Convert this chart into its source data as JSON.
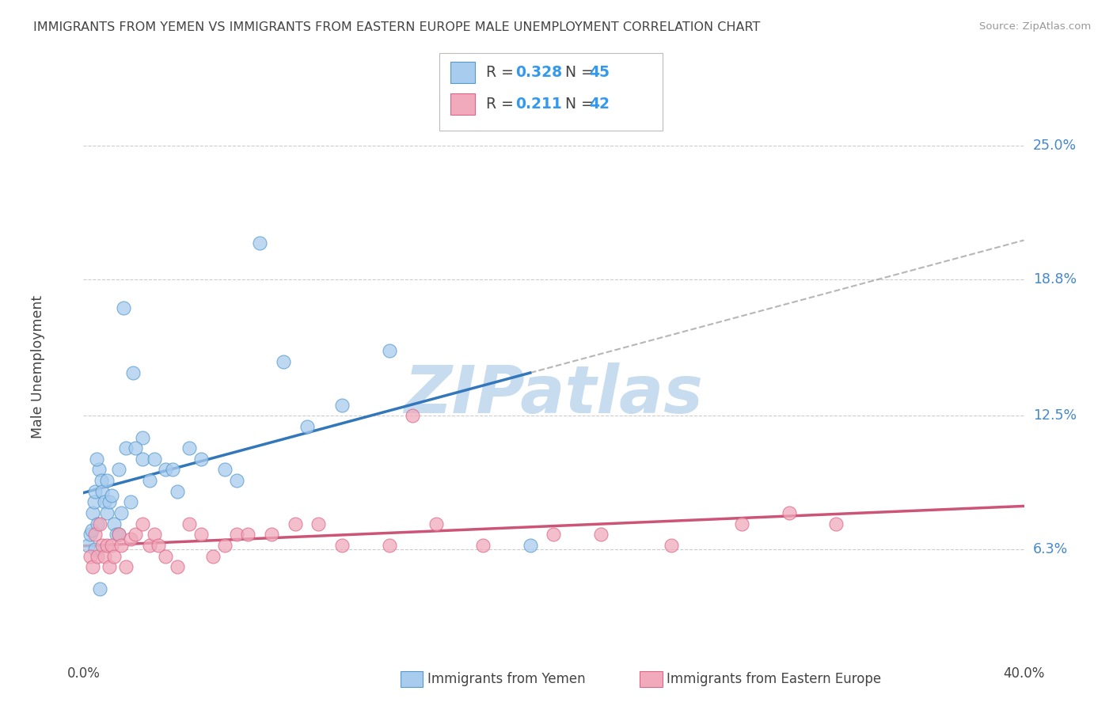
{
  "title": "IMMIGRANTS FROM YEMEN VS IMMIGRANTS FROM EASTERN EUROPE MALE UNEMPLOYMENT CORRELATION CHART",
  "source": "Source: ZipAtlas.com",
  "ylabel": "Male Unemployment",
  "ytick_values": [
    6.3,
    12.5,
    18.8,
    25.0
  ],
  "ytick_labels": [
    "6.3%",
    "12.5%",
    "18.8%",
    "25.0%"
  ],
  "xmin": 0.0,
  "xmax": 40.0,
  "ymin": 2.0,
  "ymax": 27.5,
  "legend_blue_label": "Immigrants from Yemen",
  "legend_pink_label": "Immigrants from Eastern Europe",
  "R_blue": "0.328",
  "N_blue": "45",
  "R_pink": "0.211",
  "N_pink": "42",
  "blue_face": "#A8CCEE",
  "blue_edge": "#5599CC",
  "blue_line": "#3377BB",
  "pink_face": "#F0AABB",
  "pink_edge": "#DD6688",
  "pink_line": "#CC5577",
  "stat_color": "#3399EE",
  "text_color": "#444444",
  "right_label_color": "#4488CC",
  "grid_color": "#CCCCCC",
  "background": "#FFFFFF",
  "watermark": "ZIPatlas",
  "blue_x": [
    0.2,
    0.3,
    0.35,
    0.4,
    0.45,
    0.5,
    0.5,
    0.6,
    0.65,
    0.7,
    0.75,
    0.8,
    0.9,
    1.0,
    1.0,
    1.1,
    1.2,
    1.3,
    1.4,
    1.5,
    1.5,
    1.6,
    1.8,
    2.0,
    2.1,
    2.5,
    2.8,
    3.0,
    3.5,
    3.8,
    4.0,
    4.5,
    5.0,
    6.0,
    6.5,
    7.5,
    8.5,
    9.5,
    11.0,
    13.0,
    2.5,
    1.7,
    0.55,
    2.2,
    19.0
  ],
  "blue_y": [
    6.5,
    7.0,
    7.2,
    8.0,
    8.5,
    9.0,
    6.3,
    7.5,
    10.0,
    4.5,
    9.5,
    9.0,
    8.5,
    9.5,
    8.0,
    8.5,
    8.8,
    7.5,
    7.0,
    7.0,
    10.0,
    8.0,
    11.0,
    8.5,
    14.5,
    10.5,
    9.5,
    10.5,
    10.0,
    10.0,
    9.0,
    11.0,
    10.5,
    10.0,
    9.5,
    20.5,
    15.0,
    12.0,
    13.0,
    15.5,
    11.5,
    17.5,
    10.5,
    11.0,
    6.5
  ],
  "pink_x": [
    0.3,
    0.4,
    0.5,
    0.6,
    0.7,
    0.8,
    0.9,
    1.0,
    1.1,
    1.2,
    1.3,
    1.5,
    1.6,
    1.8,
    2.0,
    2.2,
    2.5,
    2.8,
    3.0,
    3.2,
    3.5,
    4.0,
    4.5,
    5.0,
    5.5,
    6.0,
    6.5,
    7.0,
    8.0,
    9.0,
    10.0,
    11.0,
    13.0,
    15.0,
    17.0,
    20.0,
    22.0,
    25.0,
    28.0,
    30.0,
    32.0,
    14.0
  ],
  "pink_y": [
    6.0,
    5.5,
    7.0,
    6.0,
    7.5,
    6.5,
    6.0,
    6.5,
    5.5,
    6.5,
    6.0,
    7.0,
    6.5,
    5.5,
    6.8,
    7.0,
    7.5,
    6.5,
    7.0,
    6.5,
    6.0,
    5.5,
    7.5,
    7.0,
    6.0,
    6.5,
    7.0,
    7.0,
    7.0,
    7.5,
    7.5,
    6.5,
    6.5,
    7.5,
    6.5,
    7.0,
    7.0,
    6.5,
    7.5,
    8.0,
    7.5,
    12.5
  ]
}
